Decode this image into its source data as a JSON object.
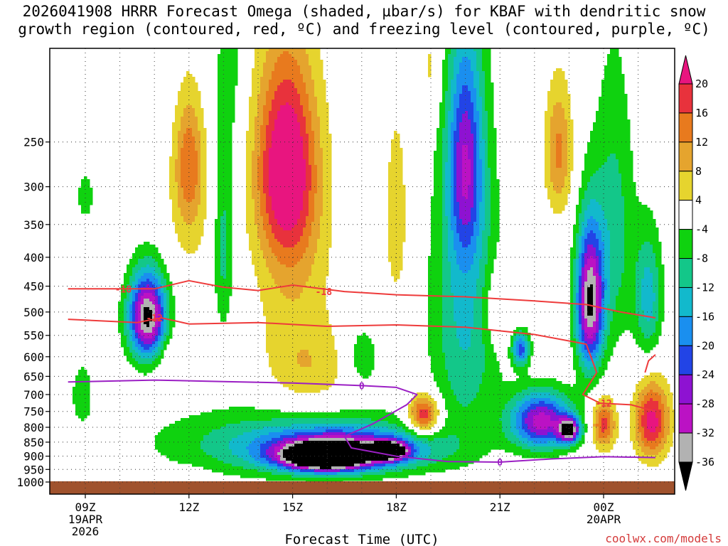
{
  "title_line1": "2026041908 HRRR Forecast Omega (shaded, µbar/s) for KBAF with dendritic snow",
  "title_line2": "growth region (contoured, red, ºC) and freezing level (contoured, purple, ºC)",
  "xaxis_title": "Forecast Time (UTC)",
  "credit": "coolwx.com/models",
  "chart_data": {
    "type": "heatmap",
    "title": "2026041908 HRRR Forecast Omega (shaded, µbar/s) for KBAF with dendritic snow growth region (contoured, red, ºC) and freezing level (contoured, purple, ºC)",
    "xlabel": "Forecast Time (UTC)",
    "ylabel": "",
    "x_range_hours_from_09Z": [
      -0.5,
      16.5
    ],
    "y_range_hPa": [
      1025,
      170
    ],
    "y_scale": "log-pressure",
    "grid": true,
    "x_ticks": [
      {
        "h": 0,
        "label": "09Z",
        "sub1": "19APR",
        "sub2": "2026"
      },
      {
        "h": 3,
        "label": "12Z",
        "sub1": "",
        "sub2": ""
      },
      {
        "h": 6,
        "label": "15Z",
        "sub1": "",
        "sub2": ""
      },
      {
        "h": 9,
        "label": "18Z",
        "sub1": "",
        "sub2": ""
      },
      {
        "h": 12,
        "label": "21Z",
        "sub1": "",
        "sub2": ""
      },
      {
        "h": 15,
        "label": "00Z",
        "sub1": "20APR",
        "sub2": ""
      }
    ],
    "y_ticks": [
      250,
      300,
      350,
      400,
      450,
      500,
      550,
      600,
      650,
      700,
      750,
      800,
      850,
      900,
      950,
      1000
    ],
    "colorbar": {
      "labels": [
        "20",
        "16",
        "12",
        "8",
        "4",
        "-4",
        "-8",
        "-12",
        "-16",
        "-20",
        "-24",
        "-28",
        "-32",
        "-36"
      ],
      "bins": [
        {
          "color": "#e8157f"
        },
        {
          "color": "#e8323c"
        },
        {
          "color": "#e87a1e"
        },
        {
          "color": "#e5a42e"
        },
        {
          "color": "#e6d42e"
        },
        {
          "color": "#ffffff"
        },
        {
          "color": "#0fd20f"
        },
        {
          "color": "#13c789"
        },
        {
          "color": "#12b9cc"
        },
        {
          "color": "#1a8fef"
        },
        {
          "color": "#2244e6"
        },
        {
          "color": "#8e12d2"
        },
        {
          "color": "#bb12c4"
        },
        {
          "color": "#b2b2b2"
        },
        {
          "color": "#000000"
        }
      ]
    },
    "omega_cells": [
      {
        "t": 1.8,
        "p": 510,
        "v": -38,
        "sx": 0.55,
        "sp": 90
      },
      {
        "t": 5.8,
        "p": 275,
        "v": 22,
        "sx": 0.85,
        "sp": 110
      },
      {
        "t": 6.0,
        "p": 380,
        "v": 8,
        "sx": 1.1,
        "sp": 200
      },
      {
        "t": 6.5,
        "p": 640,
        "v": 7,
        "sx": 1.3,
        "sp": 120
      },
      {
        "t": 3.0,
        "p": 270,
        "v": 12,
        "sx": 0.4,
        "sp": 70
      },
      {
        "t": 3.0,
        "p": 330,
        "v": 5,
        "sx": 0.7,
        "sp": 110
      },
      {
        "t": 2.5,
        "p": 600,
        "v": 5,
        "sx": 0.5,
        "sp": 60
      },
      {
        "t": 4.2,
        "p": 170,
        "v": -6,
        "sx": 0.4,
        "sp": 90
      },
      {
        "t": 4.0,
        "p": 380,
        "v": -10,
        "sx": 0.3,
        "sp": 150
      },
      {
        "t": 0.0,
        "p": 310,
        "v": -5,
        "sx": 0.25,
        "sp": 30
      },
      {
        "t": -0.1,
        "p": 710,
        "v": -6,
        "sx": 0.3,
        "sp": 80
      },
      {
        "t": 6.9,
        "p": 905,
        "v": -40,
        "sx": 1.1,
        "sp": 45
      },
      {
        "t": 7.5,
        "p": 880,
        "v": -28,
        "sx": 2.2,
        "sp": 70
      },
      {
        "t": 6.0,
        "p": 850,
        "v": -12,
        "sx": 3.8,
        "sp": 120
      },
      {
        "t": 8.8,
        "p": 880,
        "v": -36,
        "sx": 0.5,
        "sp": 30
      },
      {
        "t": 9.8,
        "p": 760,
        "v": 22,
        "sx": 0.45,
        "sp": 60
      },
      {
        "t": 9.0,
        "p": 340,
        "v": 7,
        "sx": 0.35,
        "sp": 140
      },
      {
        "t": 10.0,
        "p": 185,
        "v": 6,
        "sx": 0.3,
        "sp": 40
      },
      {
        "t": 11.0,
        "p": 270,
        "v": -22,
        "sx": 0.5,
        "sp": 120
      },
      {
        "t": 11.0,
        "p": 500,
        "v": -13,
        "sx": 1.0,
        "sp": 300
      },
      {
        "t": 13.7,
        "p": 260,
        "v": 13,
        "sx": 0.4,
        "sp": 70
      },
      {
        "t": 12.0,
        "p": 495,
        "v": 8,
        "sx": 0.5,
        "sp": 80
      },
      {
        "t": 14.6,
        "p": 480,
        "v": -36,
        "sx": 0.4,
        "sp": 140
      },
      {
        "t": 13.2,
        "p": 780,
        "v": -30,
        "sx": 0.9,
        "sp": 90
      },
      {
        "t": 14.0,
        "p": 810,
        "v": -33,
        "sx": 0.3,
        "sp": 40
      },
      {
        "t": 15.0,
        "p": 790,
        "v": 18,
        "sx": 0.35,
        "sp": 80
      },
      {
        "t": 16.4,
        "p": 780,
        "v": 22,
        "sx": 0.5,
        "sp": 120
      },
      {
        "t": 12.6,
        "p": 580,
        "v": -22,
        "sx": 0.25,
        "sp": 40
      },
      {
        "t": 15.3,
        "p": 360,
        "v": -10,
        "sx": 0.6,
        "sp": 200
      },
      {
        "t": 16.3,
        "p": 470,
        "v": -14,
        "sx": 0.4,
        "sp": 120
      },
      {
        "t": 2.8,
        "p": 960,
        "v": 5,
        "sx": 0.5,
        "sp": 20
      },
      {
        "t": 0.0,
        "p": 500,
        "v": -3,
        "sx": 0.6,
        "sp": 200
      },
      {
        "t": 8.0,
        "p": 600,
        "v": -8,
        "sx": 0.5,
        "sp": 80
      }
    ],
    "dendritic_contours": [
      {
        "label": "-18",
        "label_at": [
          1.1,
          6.9
        ],
        "points": [
          [
            -0.5,
            455
          ],
          [
            2.0,
            455
          ],
          [
            3.0,
            440
          ],
          [
            4.0,
            452
          ],
          [
            5.0,
            458
          ],
          [
            6.0,
            448
          ],
          [
            7.5,
            460
          ],
          [
            9.0,
            466
          ],
          [
            11.0,
            470
          ],
          [
            13.0,
            478
          ],
          [
            14.5,
            485
          ],
          [
            15.5,
            500
          ],
          [
            16.5,
            512
          ]
        ]
      },
      {
        "label": "-12",
        "label_at": [
          2.0,
          15.0
        ],
        "points": [
          [
            -0.5,
            515
          ],
          [
            1.5,
            522
          ],
          [
            2.2,
            512
          ],
          [
            3.0,
            525
          ],
          [
            5.0,
            522
          ],
          [
            7.0,
            530
          ],
          [
            9.0,
            527
          ],
          [
            11.0,
            532
          ],
          [
            12.0,
            540
          ],
          [
            13.0,
            548
          ],
          [
            14.5,
            570
          ],
          [
            14.8,
            640
          ],
          [
            14.4,
            700
          ],
          [
            14.9,
            725
          ],
          [
            15.8,
            730
          ],
          [
            16.5,
            750
          ]
        ]
      },
      {
        "label": "",
        "label_at": null,
        "points": [
          [
            16.2,
            640
          ],
          [
            16.3,
            610
          ],
          [
            16.5,
            595
          ]
        ]
      }
    ],
    "freezing_level": {
      "label": "0",
      "label_at": [
        8.0,
        12.0
      ],
      "points": [
        [
          -0.5,
          665
        ],
        [
          2.0,
          660
        ],
        [
          4.0,
          664
        ],
        [
          6.0,
          668
        ],
        [
          8.0,
          675
        ],
        [
          9.0,
          680
        ],
        [
          9.6,
          700
        ],
        [
          9.3,
          730
        ],
        [
          8.3,
          790
        ],
        [
          7.5,
          830
        ],
        [
          7.7,
          870
        ],
        [
          9.0,
          900
        ],
        [
          10.5,
          920
        ],
        [
          12.0,
          922
        ],
        [
          13.5,
          910
        ],
        [
          15.0,
          902
        ],
        [
          16.5,
          905
        ]
      ]
    }
  }
}
